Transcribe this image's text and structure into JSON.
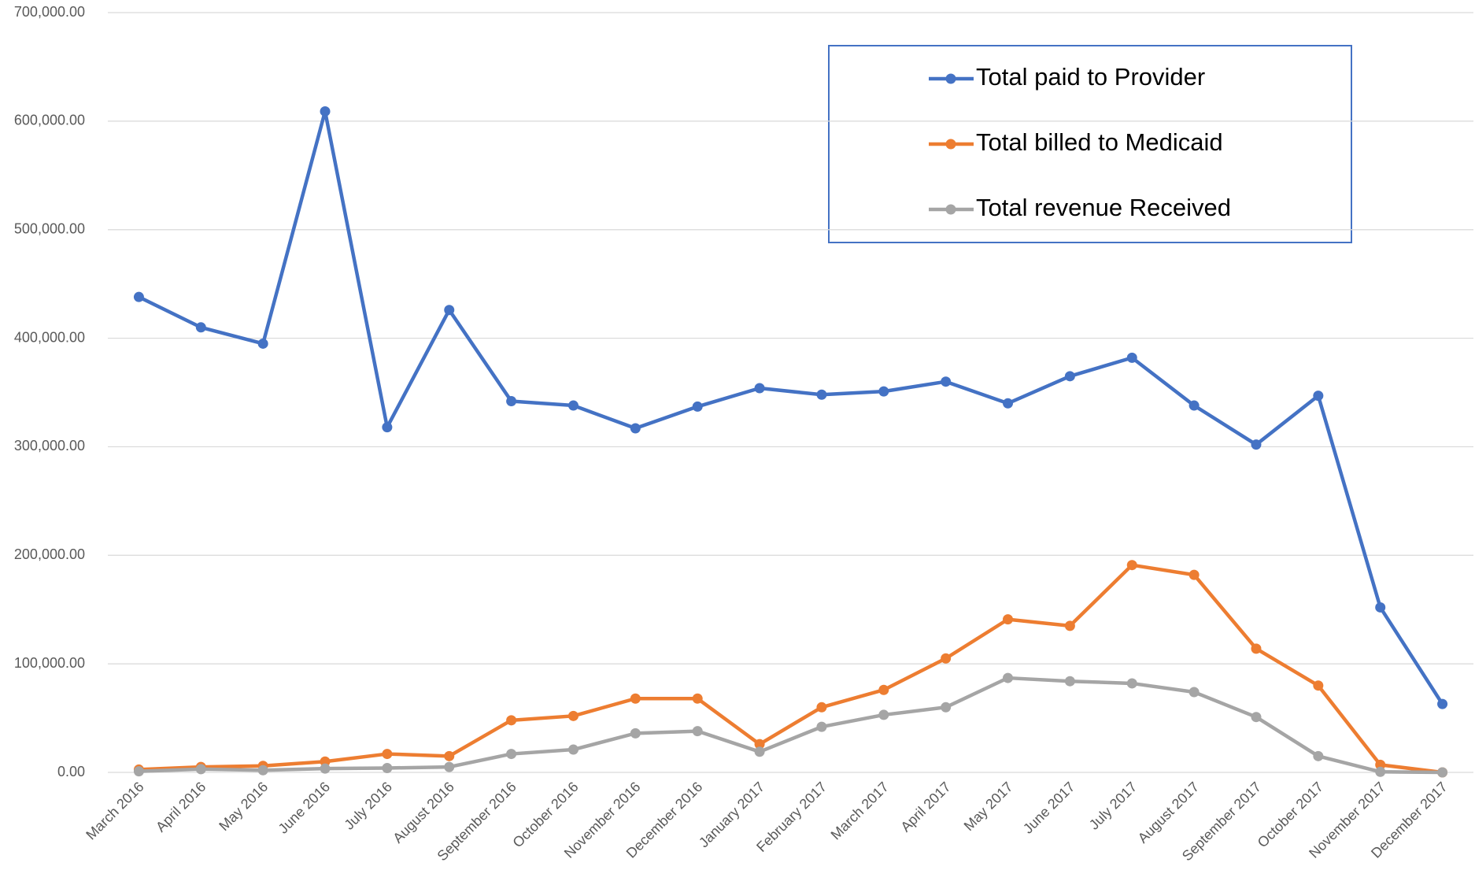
{
  "chart_data": {
    "type": "line",
    "categories": [
      "March 2016",
      "April 2016",
      "May 2016",
      "June 2016",
      "July 2016",
      "August 2016",
      "September 2016",
      "October 2016",
      "November 2016",
      "December 2016",
      "January 2017",
      "February 2017",
      "March 2017",
      "April 2017",
      "May 2017",
      "June 2017",
      "July 2017",
      "August 2017",
      "September 2017",
      "October 2017",
      "November 2017",
      "December 2017"
    ],
    "series": [
      {
        "name": "Total paid to Provider",
        "color": "#4472c4",
        "values": [
          438000,
          410000,
          395000,
          609000,
          318000,
          426000,
          342000,
          338000,
          317000,
          337000,
          354000,
          348000,
          351000,
          360000,
          340000,
          365000,
          382000,
          338000,
          302000,
          347000,
          152000,
          63000
        ]
      },
      {
        "name": "Total billed to Medicaid",
        "color": "#ed7d31",
        "values": [
          2600,
          5000,
          6000,
          10000,
          17000,
          15000,
          48000,
          52000,
          68000,
          68000,
          26000,
          60000,
          76000,
          105000,
          141000,
          135000,
          191000,
          182000,
          114000,
          80000,
          7000,
          0
        ]
      },
      {
        "name": "Total revenue Received",
        "color": "#a5a5a5",
        "values": [
          1000,
          3000,
          2000,
          3500,
          4000,
          5000,
          17000,
          21000,
          36000,
          38000,
          19000,
          42000,
          53000,
          60000,
          87000,
          84000,
          82000,
          74000,
          51000,
          15000,
          500,
          0
        ]
      }
    ],
    "ylim": [
      0,
      700000
    ],
    "yticks": [
      {
        "value": 0,
        "label": "0.00"
      },
      {
        "value": 100000,
        "label": "100,000.00"
      },
      {
        "value": 200000,
        "label": "200,000.00"
      },
      {
        "value": 300000,
        "label": "300,000.00"
      },
      {
        "value": 400000,
        "label": "400,000.00"
      },
      {
        "value": 500000,
        "label": "500,000.00"
      },
      {
        "value": 600000,
        "label": "600,000.00"
      },
      {
        "value": 700000,
        "label": "700,000.00"
      }
    ],
    "grid": true,
    "legend": "top-right"
  }
}
